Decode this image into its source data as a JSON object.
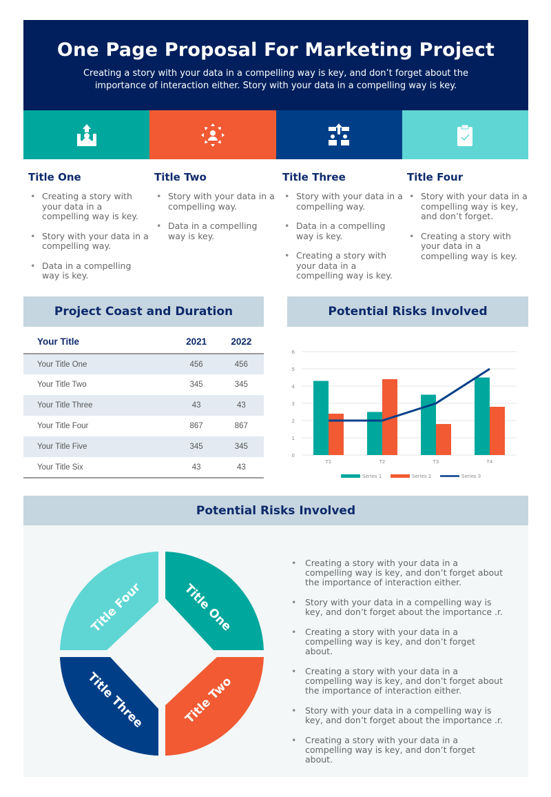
{
  "header": {
    "title": "One Page Proposal For Marketing Project",
    "subtitle": "Creating a story with your data in a compelling way is key, and don’t forget about the importance of interaction either. Story with your data in a compelling way is key."
  },
  "icon_tiles": [
    {
      "icon": "person-upload-icon",
      "color": "#00a79d"
    },
    {
      "icon": "person-network-icon",
      "color": "#f15a33"
    },
    {
      "icon": "growth-collaboration-icon",
      "color": "#003f88"
    },
    {
      "icon": "clipboard-check-icon",
      "color": "#5fd6d4"
    }
  ],
  "columns": [
    {
      "title": "Title One",
      "items": [
        "Creating a story with your data in a compelling way is key.",
        "Story with your data in a compelling way.",
        "Data in a compelling way is key."
      ]
    },
    {
      "title": "Title Two",
      "items": [
        "Story with your data in a compelling way.",
        "Data in a compelling way is key."
      ]
    },
    {
      "title": "Title Three",
      "items": [
        "Story with your data in a compelling way.",
        "Data in a compelling way is key.",
        "Creating a story with your data in a compelling way is key."
      ]
    },
    {
      "title": "Title Four",
      "items": [
        "Story with your data in a compelling way is key, and don’t forget.",
        "Creating a story with your data in a compelling way is key."
      ]
    }
  ],
  "cost_table": {
    "heading": "Project Coast and Duration",
    "headers": [
      "Your Title",
      "2021",
      "2022"
    ],
    "rows": [
      [
        "Your Title One",
        "456",
        "456"
      ],
      [
        "Your Title Two",
        "345",
        "345"
      ],
      [
        "Your Title Three",
        "43",
        "43"
      ],
      [
        "Your Title Four",
        "867",
        "867"
      ],
      [
        "Your Title Five",
        "345",
        "345"
      ],
      [
        "Your Title Six",
        "43",
        "43"
      ]
    ]
  },
  "risks_heading": "Potential Risks Involved",
  "chart_data": {
    "type": "bar",
    "categories": [
      "T1",
      "T2",
      "T3",
      "T4"
    ],
    "ylim": [
      0,
      6
    ],
    "yticks": [
      0,
      1,
      2,
      3,
      4,
      5,
      6
    ],
    "grid": true,
    "legend": "bottom",
    "series": [
      {
        "name": "Series 1",
        "type": "bar",
        "color": "#00a79d",
        "values": [
          4.3,
          2.5,
          3.5,
          4.5
        ]
      },
      {
        "name": "Series 2",
        "type": "bar",
        "color": "#f15a33",
        "values": [
          2.4,
          4.4,
          1.8,
          2.8
        ]
      },
      {
        "name": "Series 3",
        "type": "line",
        "color": "#003f88",
        "values": [
          2,
          2,
          3,
          5
        ]
      }
    ]
  },
  "bottom": {
    "heading": "Potential Risks Involved",
    "segments": [
      {
        "label": "Title One",
        "color": "#00a79d"
      },
      {
        "label": "Title Two",
        "color": "#f15a33"
      },
      {
        "label": "Title Three",
        "color": "#003f88"
      },
      {
        "label": "Title Four",
        "color": "#5fd6d4"
      }
    ],
    "items": [
      "Creating a story with your data in a compelling way is key, and don’t forget about the importance of interaction either.",
      "Story with your data in a compelling way is key, and don’t forget about the importance .r.",
      "Creating a story with your data in a compelling way is key, and don’t forget about.",
      "Creating a story with your data in a compelling way is key, and don’t forget about the importance of interaction either.",
      "Story with your data in a compelling way is key, and don’t forget about the importance .r.",
      "Creating a story with your data in a compelling way is key, and don’t forget about."
    ]
  }
}
